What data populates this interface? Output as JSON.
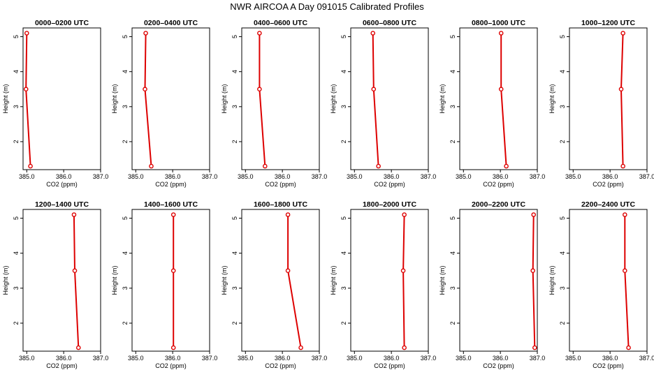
{
  "figure_title": "NWR AIRCOA A  Day 091015  Calibrated Profiles",
  "colors": {
    "series": "#dd0000",
    "axes": "#000000",
    "background": "#ffffff"
  },
  "chart_data": [
    {
      "type": "line",
      "title": "0000–0200 UTC",
      "xlabel": "CO2 (ppm)",
      "ylabel": "Height (m)",
      "xlim": [
        384.9,
        387.0
      ],
      "ylim": [
        1.2,
        5.25
      ],
      "xticks": [
        385.0,
        386.0,
        387.0
      ],
      "xtick_labels": [
        "385.0",
        "386.0",
        "387.0"
      ],
      "yticks": [
        2,
        3,
        4,
        5
      ],
      "ytick_labels": [
        "2",
        "3",
        "4",
        "5"
      ],
      "series": [
        {
          "x": [
            385.1,
            384.98,
            385.0
          ],
          "y": [
            1.3,
            3.5,
            5.1
          ]
        }
      ]
    },
    {
      "type": "line",
      "title": "0200–0400 UTC",
      "xlabel": "CO2 (ppm)",
      "ylabel": "Height (m)",
      "xlim": [
        384.9,
        387.0
      ],
      "ylim": [
        1.2,
        5.25
      ],
      "xticks": [
        385.0,
        386.0,
        387.0
      ],
      "xtick_labels": [
        "385.0",
        "386.0",
        "387.0"
      ],
      "yticks": [
        2,
        3,
        4,
        5
      ],
      "ytick_labels": [
        "2",
        "3",
        "4",
        "5"
      ],
      "series": [
        {
          "x": [
            385.42,
            385.25,
            385.27
          ],
          "y": [
            1.3,
            3.5,
            5.1
          ]
        }
      ]
    },
    {
      "type": "line",
      "title": "0400–0600 UTC",
      "xlabel": "CO2 (ppm)",
      "ylabel": "Height (m)",
      "xlim": [
        384.9,
        387.0
      ],
      "ylim": [
        1.2,
        5.25
      ],
      "xticks": [
        385.0,
        386.0,
        387.0
      ],
      "xtick_labels": [
        "385.0",
        "386.0",
        "387.0"
      ],
      "yticks": [
        2,
        3,
        4,
        5
      ],
      "ytick_labels": [
        "2",
        "3",
        "4",
        "5"
      ],
      "series": [
        {
          "x": [
            385.53,
            385.38,
            385.38
          ],
          "y": [
            1.3,
            3.5,
            5.1
          ]
        }
      ]
    },
    {
      "type": "line",
      "title": "0600–0800 UTC",
      "xlabel": "CO2 (ppm)",
      "ylabel": "Height (m)",
      "xlim": [
        384.9,
        387.0
      ],
      "ylim": [
        1.2,
        5.25
      ],
      "xticks": [
        385.0,
        386.0,
        387.0
      ],
      "xtick_labels": [
        "385.0",
        "386.0",
        "387.0"
      ],
      "yticks": [
        2,
        3,
        4,
        5
      ],
      "ytick_labels": [
        "2",
        "3",
        "4",
        "5"
      ],
      "series": [
        {
          "x": [
            385.65,
            385.52,
            385.5
          ],
          "y": [
            1.3,
            3.5,
            5.1
          ]
        }
      ]
    },
    {
      "type": "line",
      "title": "0800–1000 UTC",
      "xlabel": "CO2 (ppm)",
      "ylabel": "Height (m)",
      "xlim": [
        384.9,
        387.0
      ],
      "ylim": [
        1.2,
        5.25
      ],
      "xticks": [
        385.0,
        386.0,
        387.0
      ],
      "xtick_labels": [
        "385.0",
        "386.0",
        "387.0"
      ],
      "yticks": [
        2,
        3,
        4,
        5
      ],
      "ytick_labels": [
        "2",
        "3",
        "4",
        "5"
      ],
      "series": [
        {
          "x": [
            386.16,
            386.02,
            386.02
          ],
          "y": [
            1.3,
            3.5,
            5.1
          ]
        }
      ]
    },
    {
      "type": "line",
      "title": "1000–1200 UTC",
      "xlabel": "CO2 (ppm)",
      "ylabel": "Height (m)",
      "xlim": [
        384.9,
        387.0
      ],
      "ylim": [
        1.2,
        5.25
      ],
      "xticks": [
        385.0,
        386.0,
        387.0
      ],
      "xtick_labels": [
        "385.0",
        "386.0",
        "387.0"
      ],
      "yticks": [
        2,
        3,
        4,
        5
      ],
      "ytick_labels": [
        "2",
        "3",
        "4",
        "5"
      ],
      "series": [
        {
          "x": [
            386.35,
            386.3,
            386.35
          ],
          "y": [
            1.3,
            3.5,
            5.1
          ]
        }
      ]
    },
    {
      "type": "line",
      "title": "1200–1400 UTC",
      "xlabel": "CO2 (ppm)",
      "ylabel": "Height (m)",
      "xlim": [
        384.9,
        387.0
      ],
      "ylim": [
        1.2,
        5.25
      ],
      "xticks": [
        385.0,
        386.0,
        387.0
      ],
      "xtick_labels": [
        "385.0",
        "386.0",
        "387.0"
      ],
      "yticks": [
        2,
        3,
        4,
        5
      ],
      "ytick_labels": [
        "2",
        "3",
        "4",
        "5"
      ],
      "series": [
        {
          "x": [
            386.4,
            386.3,
            386.28
          ],
          "y": [
            1.3,
            3.5,
            5.1
          ]
        }
      ]
    },
    {
      "type": "line",
      "title": "1400–1600 UTC",
      "xlabel": "CO2 (ppm)",
      "ylabel": "Height (m)",
      "xlim": [
        384.9,
        387.0
      ],
      "ylim": [
        1.2,
        5.25
      ],
      "xticks": [
        385.0,
        386.0,
        387.0
      ],
      "xtick_labels": [
        "385.0",
        "386.0",
        "387.0"
      ],
      "yticks": [
        2,
        3,
        4,
        5
      ],
      "ytick_labels": [
        "2",
        "3",
        "4",
        "5"
      ],
      "series": [
        {
          "x": [
            386.02,
            386.02,
            386.02
          ],
          "y": [
            1.3,
            3.5,
            5.1
          ]
        }
      ]
    },
    {
      "type": "line",
      "title": "1600–1800 UTC",
      "xlabel": "CO2 (ppm)",
      "ylabel": "Height (m)",
      "xlim": [
        384.9,
        387.0
      ],
      "ylim": [
        1.2,
        5.25
      ],
      "xticks": [
        385.0,
        386.0,
        387.0
      ],
      "xtick_labels": [
        "385.0",
        "386.0",
        "387.0"
      ],
      "yticks": [
        2,
        3,
        4,
        5
      ],
      "ytick_labels": [
        "2",
        "3",
        "4",
        "5"
      ],
      "series": [
        {
          "x": [
            386.5,
            386.15,
            386.15
          ],
          "y": [
            1.3,
            3.5,
            5.1
          ]
        }
      ]
    },
    {
      "type": "line",
      "title": "1800–2000 UTC",
      "xlabel": "CO2 (ppm)",
      "ylabel": "Height (m)",
      "xlim": [
        384.9,
        387.0
      ],
      "ylim": [
        1.2,
        5.25
      ],
      "xticks": [
        385.0,
        386.0,
        387.0
      ],
      "xtick_labels": [
        "385.0",
        "386.0",
        "387.0"
      ],
      "yticks": [
        2,
        3,
        4,
        5
      ],
      "ytick_labels": [
        "2",
        "3",
        "4",
        "5"
      ],
      "series": [
        {
          "x": [
            386.35,
            386.32,
            386.35
          ],
          "y": [
            1.3,
            3.5,
            5.1
          ]
        }
      ]
    },
    {
      "type": "line",
      "title": "2000–2200 UTC",
      "xlabel": "CO2 (ppm)",
      "ylabel": "Height (m)",
      "xlim": [
        384.9,
        387.0
      ],
      "ylim": [
        1.2,
        5.25
      ],
      "xticks": [
        385.0,
        386.0,
        387.0
      ],
      "xtick_labels": [
        "385.0",
        "386.0",
        "387.0"
      ],
      "yticks": [
        2,
        3,
        4,
        5
      ],
      "ytick_labels": [
        "2",
        "3",
        "4",
        "5"
      ],
      "series": [
        {
          "x": [
            386.93,
            386.88,
            386.9
          ],
          "y": [
            1.3,
            3.5,
            5.1
          ]
        }
      ]
    },
    {
      "type": "line",
      "title": "2200–2400 UTC",
      "xlabel": "CO2 (ppm)",
      "ylabel": "Height (m)",
      "xlim": [
        384.9,
        387.0
      ],
      "ylim": [
        1.2,
        5.25
      ],
      "xticks": [
        385.0,
        386.0,
        387.0
      ],
      "xtick_labels": [
        "385.0",
        "386.0",
        "387.0"
      ],
      "yticks": [
        2,
        3,
        4,
        5
      ],
      "ytick_labels": [
        "2",
        "3",
        "4",
        "5"
      ],
      "series": [
        {
          "x": [
            386.5,
            386.4,
            386.4
          ],
          "y": [
            1.3,
            3.5,
            5.1
          ]
        }
      ]
    }
  ]
}
